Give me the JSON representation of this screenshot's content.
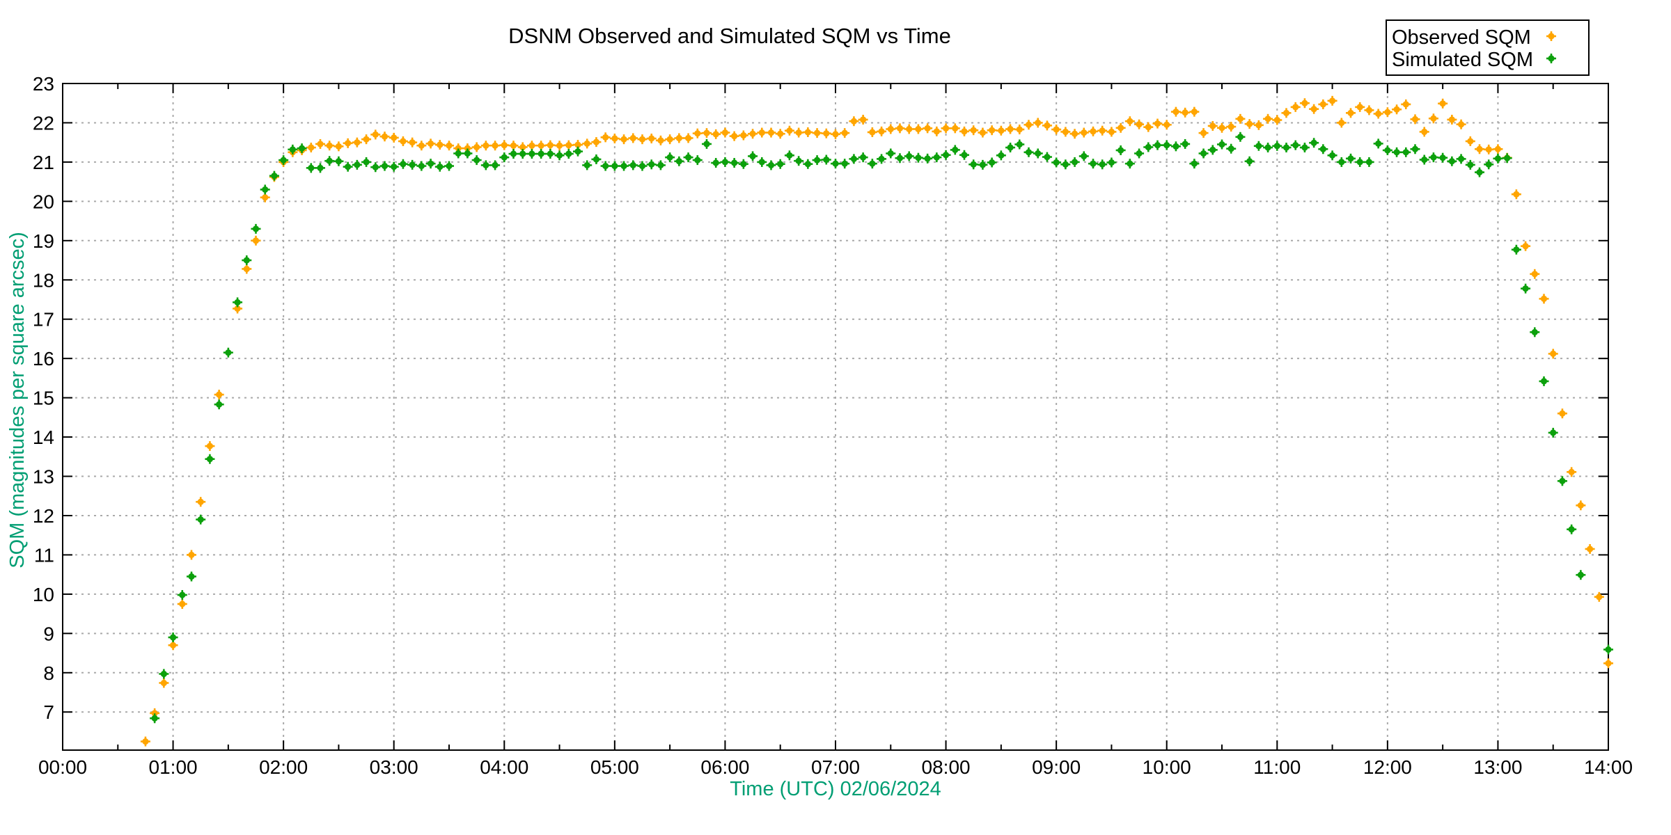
{
  "figure": {
    "title": "DSNM Observed and Simulated SQM vs Time"
  },
  "legend": {
    "entries": [
      {
        "label": "Observed SQM",
        "color": "#FFA500"
      },
      {
        "label": "Simulated SQM",
        "color": "#0CA00C"
      }
    ]
  },
  "chart_data": {
    "type": "scatter",
    "title": "DSNM Observed and Simulated SQM vs Time",
    "xlabel": "Time (UTC)   02/06/2024",
    "ylabel": "SQM (magnitudes per square arcsec)",
    "axis_label_color": "#009E73",
    "grid": true,
    "legend_position": "top-right",
    "xlim_hours": [
      0,
      14
    ],
    "ylim": [
      6.03,
      23
    ],
    "x_tick_labels": [
      "00:00",
      "01:00",
      "02:00",
      "03:00",
      "04:00",
      "05:00",
      "06:00",
      "07:00",
      "08:00",
      "09:00",
      "10:00",
      "11:00",
      "12:00",
      "13:00",
      "14:00"
    ],
    "x_minor_tick_interval_hours": 0.5,
    "y_ticks": [
      7,
      8,
      9,
      10,
      11,
      12,
      13,
      14,
      15,
      16,
      17,
      18,
      19,
      20,
      21,
      22,
      23
    ],
    "times": [
      "00:45",
      "00:50",
      "00:55",
      "01:00",
      "01:05",
      "01:10",
      "01:15",
      "01:20",
      "01:25",
      "01:30",
      "01:35",
      "01:40",
      "01:45",
      "01:50",
      "01:55",
      "02:00",
      "02:05",
      "02:10",
      "02:15",
      "02:20",
      "02:25",
      "02:30",
      "02:35",
      "02:40",
      "02:45",
      "02:50",
      "02:55",
      "03:00",
      "03:05",
      "03:10",
      "03:15",
      "03:20",
      "03:25",
      "03:30",
      "03:35",
      "03:40",
      "03:45",
      "03:50",
      "03:55",
      "04:00",
      "04:05",
      "04:10",
      "04:15",
      "04:20",
      "04:25",
      "04:30",
      "04:35",
      "04:40",
      "04:45",
      "04:50",
      "04:55",
      "05:00",
      "05:05",
      "05:10",
      "05:15",
      "05:20",
      "05:25",
      "05:30",
      "05:35",
      "05:40",
      "05:45",
      "05:50",
      "05:55",
      "06:00",
      "06:05",
      "06:10",
      "06:15",
      "06:20",
      "06:25",
      "06:30",
      "06:35",
      "06:40",
      "06:45",
      "06:50",
      "06:55",
      "07:00",
      "07:05",
      "07:10",
      "07:15",
      "07:20",
      "07:25",
      "07:30",
      "07:35",
      "07:40",
      "07:45",
      "07:50",
      "07:55",
      "08:00",
      "08:05",
      "08:10",
      "08:15",
      "08:20",
      "08:25",
      "08:30",
      "08:35",
      "08:40",
      "08:45",
      "08:50",
      "08:55",
      "09:00",
      "09:05",
      "09:10",
      "09:15",
      "09:20",
      "09:25",
      "09:30",
      "09:35",
      "09:40",
      "09:45",
      "09:50",
      "09:55",
      "10:00",
      "10:05",
      "10:10",
      "10:15",
      "10:20",
      "10:25",
      "10:30",
      "10:35",
      "10:40",
      "10:45",
      "10:50",
      "10:55",
      "11:00",
      "11:05",
      "11:10",
      "11:15",
      "11:20",
      "11:25",
      "11:30",
      "11:35",
      "11:40",
      "11:45",
      "11:50",
      "11:55",
      "12:00",
      "12:05",
      "12:10",
      "12:15",
      "12:20",
      "12:25",
      "12:30",
      "12:35",
      "12:40",
      "12:45",
      "12:50",
      "12:55",
      "13:00",
      "13:05",
      "13:10",
      "13:15",
      "13:20",
      "13:25",
      "13:30",
      "13:35",
      "13:40",
      "13:45",
      "13:50",
      "13:55",
      "14:00"
    ],
    "series": [
      {
        "name": "Observed SQM",
        "color": "#FFA500",
        "values": [
          6.25,
          6.97,
          7.74,
          8.7,
          9.75,
          11.0,
          12.35,
          13.77,
          15.08,
          null,
          17.27,
          18.28,
          19.0,
          20.1,
          20.62,
          21.0,
          21.25,
          21.3,
          21.37,
          21.46,
          21.42,
          21.4,
          21.48,
          21.5,
          21.58,
          21.7,
          21.65,
          21.62,
          21.53,
          21.5,
          21.42,
          21.47,
          21.44,
          21.42,
          21.35,
          21.35,
          21.38,
          21.42,
          21.42,
          21.43,
          21.42,
          21.38,
          21.42,
          21.42,
          21.43,
          21.42,
          21.43,
          21.44,
          21.47,
          21.51,
          21.63,
          21.6,
          21.58,
          21.61,
          21.58,
          21.6,
          21.55,
          21.58,
          21.61,
          21.61,
          21.73,
          21.74,
          21.71,
          21.75,
          21.66,
          21.68,
          21.72,
          21.75,
          21.75,
          21.72,
          21.8,
          21.75,
          21.76,
          21.74,
          21.73,
          21.71,
          21.74,
          22.04,
          22.08,
          21.76,
          21.78,
          21.84,
          21.86,
          21.84,
          21.84,
          21.86,
          21.78,
          21.86,
          21.86,
          21.78,
          21.81,
          21.75,
          21.81,
          21.8,
          21.84,
          21.83,
          21.95,
          22.0,
          21.93,
          21.83,
          21.77,
          21.72,
          21.75,
          21.78,
          21.8,
          21.77,
          21.87,
          22.04,
          21.96,
          21.89,
          21.98,
          21.95,
          22.28,
          22.26,
          22.28,
          21.74,
          21.92,
          21.87,
          21.9,
          22.1,
          21.97,
          21.94,
          22.1,
          22.07,
          22.25,
          22.4,
          22.5,
          22.35,
          22.47,
          22.56,
          22.0,
          22.25,
          22.4,
          22.32,
          22.23,
          22.27,
          22.34,
          22.47,
          22.09,
          21.77,
          22.11,
          22.49,
          22.08,
          21.96,
          21.53,
          21.33,
          21.32,
          21.33,
          21.11,
          20.18,
          18.86,
          18.15,
          17.52,
          16.12,
          14.6,
          13.11,
          12.26,
          11.15,
          9.93,
          8.24
        ]
      },
      {
        "name": "Simulated SQM",
        "color": "#0CA00C",
        "values": [
          null,
          6.84,
          7.97,
          8.9,
          9.98,
          10.45,
          11.9,
          13.44,
          14.83,
          16.15,
          17.43,
          18.5,
          19.3,
          20.3,
          20.65,
          21.05,
          21.32,
          21.35,
          20.85,
          20.85,
          21.03,
          21.02,
          20.88,
          20.93,
          21.0,
          20.87,
          20.9,
          20.88,
          20.95,
          20.93,
          20.9,
          20.96,
          20.88,
          20.9,
          21.22,
          21.22,
          21.05,
          20.92,
          20.92,
          21.12,
          21.21,
          21.21,
          21.21,
          21.21,
          21.21,
          21.17,
          21.21,
          21.27,
          20.92,
          21.07,
          20.9,
          20.9,
          20.9,
          20.92,
          20.9,
          20.94,
          20.92,
          21.12,
          21.02,
          21.12,
          21.05,
          21.46,
          20.98,
          21.0,
          20.98,
          20.95,
          21.15,
          21.0,
          20.92,
          20.95,
          21.17,
          21.03,
          20.95,
          21.05,
          21.06,
          20.96,
          20.96,
          21.08,
          21.12,
          20.96,
          21.08,
          21.22,
          21.1,
          21.15,
          21.11,
          21.09,
          21.12,
          21.18,
          21.31,
          21.18,
          20.94,
          20.93,
          20.99,
          21.17,
          21.37,
          21.45,
          21.25,
          21.22,
          21.13,
          20.99,
          20.94,
          21.0,
          21.15,
          20.96,
          20.94,
          20.99,
          21.3,
          20.96,
          21.22,
          21.38,
          21.43,
          21.43,
          21.4,
          21.46,
          20.96,
          21.22,
          21.31,
          21.45,
          21.34,
          21.64,
          21.02,
          21.41,
          21.37,
          21.41,
          21.37,
          21.43,
          21.37,
          21.49,
          21.33,
          21.17,
          21.0,
          21.09,
          21.0,
          21.0,
          21.47,
          21.3,
          21.25,
          21.25,
          21.33,
          21.06,
          21.12,
          21.11,
          21.02,
          21.08,
          20.93,
          20.74,
          20.94,
          21.09,
          21.1,
          18.77,
          17.78,
          16.67,
          15.42,
          14.11,
          12.88,
          11.65,
          10.49,
          null,
          null,
          8.59
        ]
      }
    ]
  }
}
